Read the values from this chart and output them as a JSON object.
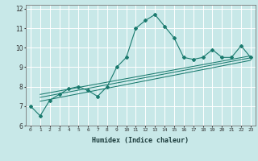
{
  "xlabel": "Humidex (Indice chaleur)",
  "ylabel": "",
  "line_color": "#1a7a6e",
  "bg_color": "#c8e8e8",
  "grid_color": "#ffffff",
  "x_data": [
    0,
    1,
    2,
    3,
    4,
    5,
    6,
    7,
    8,
    9,
    10,
    11,
    12,
    13,
    14,
    15,
    16,
    17,
    18,
    19,
    20,
    21,
    22,
    23
  ],
  "y_main": [
    7.0,
    6.5,
    7.3,
    7.6,
    7.9,
    8.0,
    7.8,
    7.5,
    8.0,
    9.0,
    9.5,
    11.0,
    11.4,
    11.7,
    11.1,
    10.5,
    9.5,
    9.4,
    9.5,
    9.9,
    9.5,
    9.5,
    10.1,
    9.5
  ],
  "regression_lines": [
    {
      "x_start": 1,
      "y_start": 7.25,
      "x_end": 23,
      "y_end": 9.35
    },
    {
      "x_start": 1,
      "y_start": 7.45,
      "x_end": 23,
      "y_end": 9.48
    },
    {
      "x_start": 1,
      "y_start": 7.6,
      "x_end": 23,
      "y_end": 9.58
    }
  ],
  "ylim": [
    6.0,
    12.2
  ],
  "xlim": [
    -0.5,
    23.5
  ],
  "yticks": [
    6,
    7,
    8,
    9,
    10,
    11,
    12
  ],
  "xticks": [
    0,
    1,
    2,
    3,
    4,
    5,
    6,
    7,
    8,
    9,
    10,
    11,
    12,
    13,
    14,
    15,
    16,
    17,
    18,
    19,
    20,
    21,
    22,
    23
  ],
  "marker": "D",
  "markersize": 2.0,
  "linewidth": 0.8
}
